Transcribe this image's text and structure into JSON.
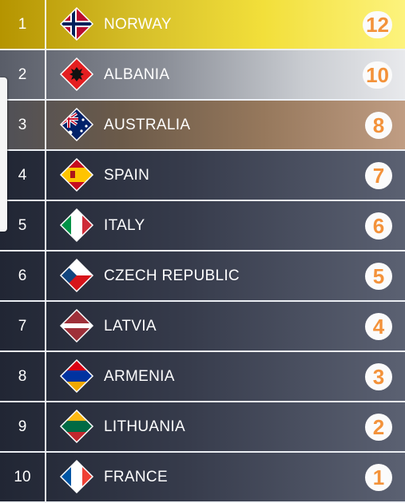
{
  "scoreboard": {
    "rows": [
      {
        "rank": "1",
        "country": "NORWAY",
        "points": "12",
        "flag": "norway-flag-icon"
      },
      {
        "rank": "2",
        "country": "ALBANIA",
        "points": "10",
        "flag": "albania-flag-icon"
      },
      {
        "rank": "3",
        "country": "AUSTRALIA",
        "points": "8",
        "flag": "australia-flag-icon"
      },
      {
        "rank": "4",
        "country": "SPAIN",
        "points": "7",
        "flag": "spain-flag-icon"
      },
      {
        "rank": "5",
        "country": "ITALY",
        "points": "6",
        "flag": "italy-flag-icon"
      },
      {
        "rank": "6",
        "country": "CZECH REPUBLIC",
        "points": "5",
        "flag": "czech-republic-flag-icon"
      },
      {
        "rank": "7",
        "country": "LATVIA",
        "points": "4",
        "flag": "latvia-flag-icon"
      },
      {
        "rank": "8",
        "country": "ARMENIA",
        "points": "3",
        "flag": "armenia-flag-icon"
      },
      {
        "rank": "9",
        "country": "LITHUANIA",
        "points": "2",
        "flag": "lithuania-flag-icon"
      },
      {
        "rank": "10",
        "country": "FRANCE",
        "points": "1",
        "flag": "france-flag-icon"
      }
    ]
  },
  "colors": {
    "gold_row": "#e3cc32",
    "silver_row": "#b7bac1",
    "bronze_row": "#a88a72",
    "dark_row": "#363b4b",
    "points_text": "#f3923a",
    "points_badge": "#fbfbfb"
  }
}
